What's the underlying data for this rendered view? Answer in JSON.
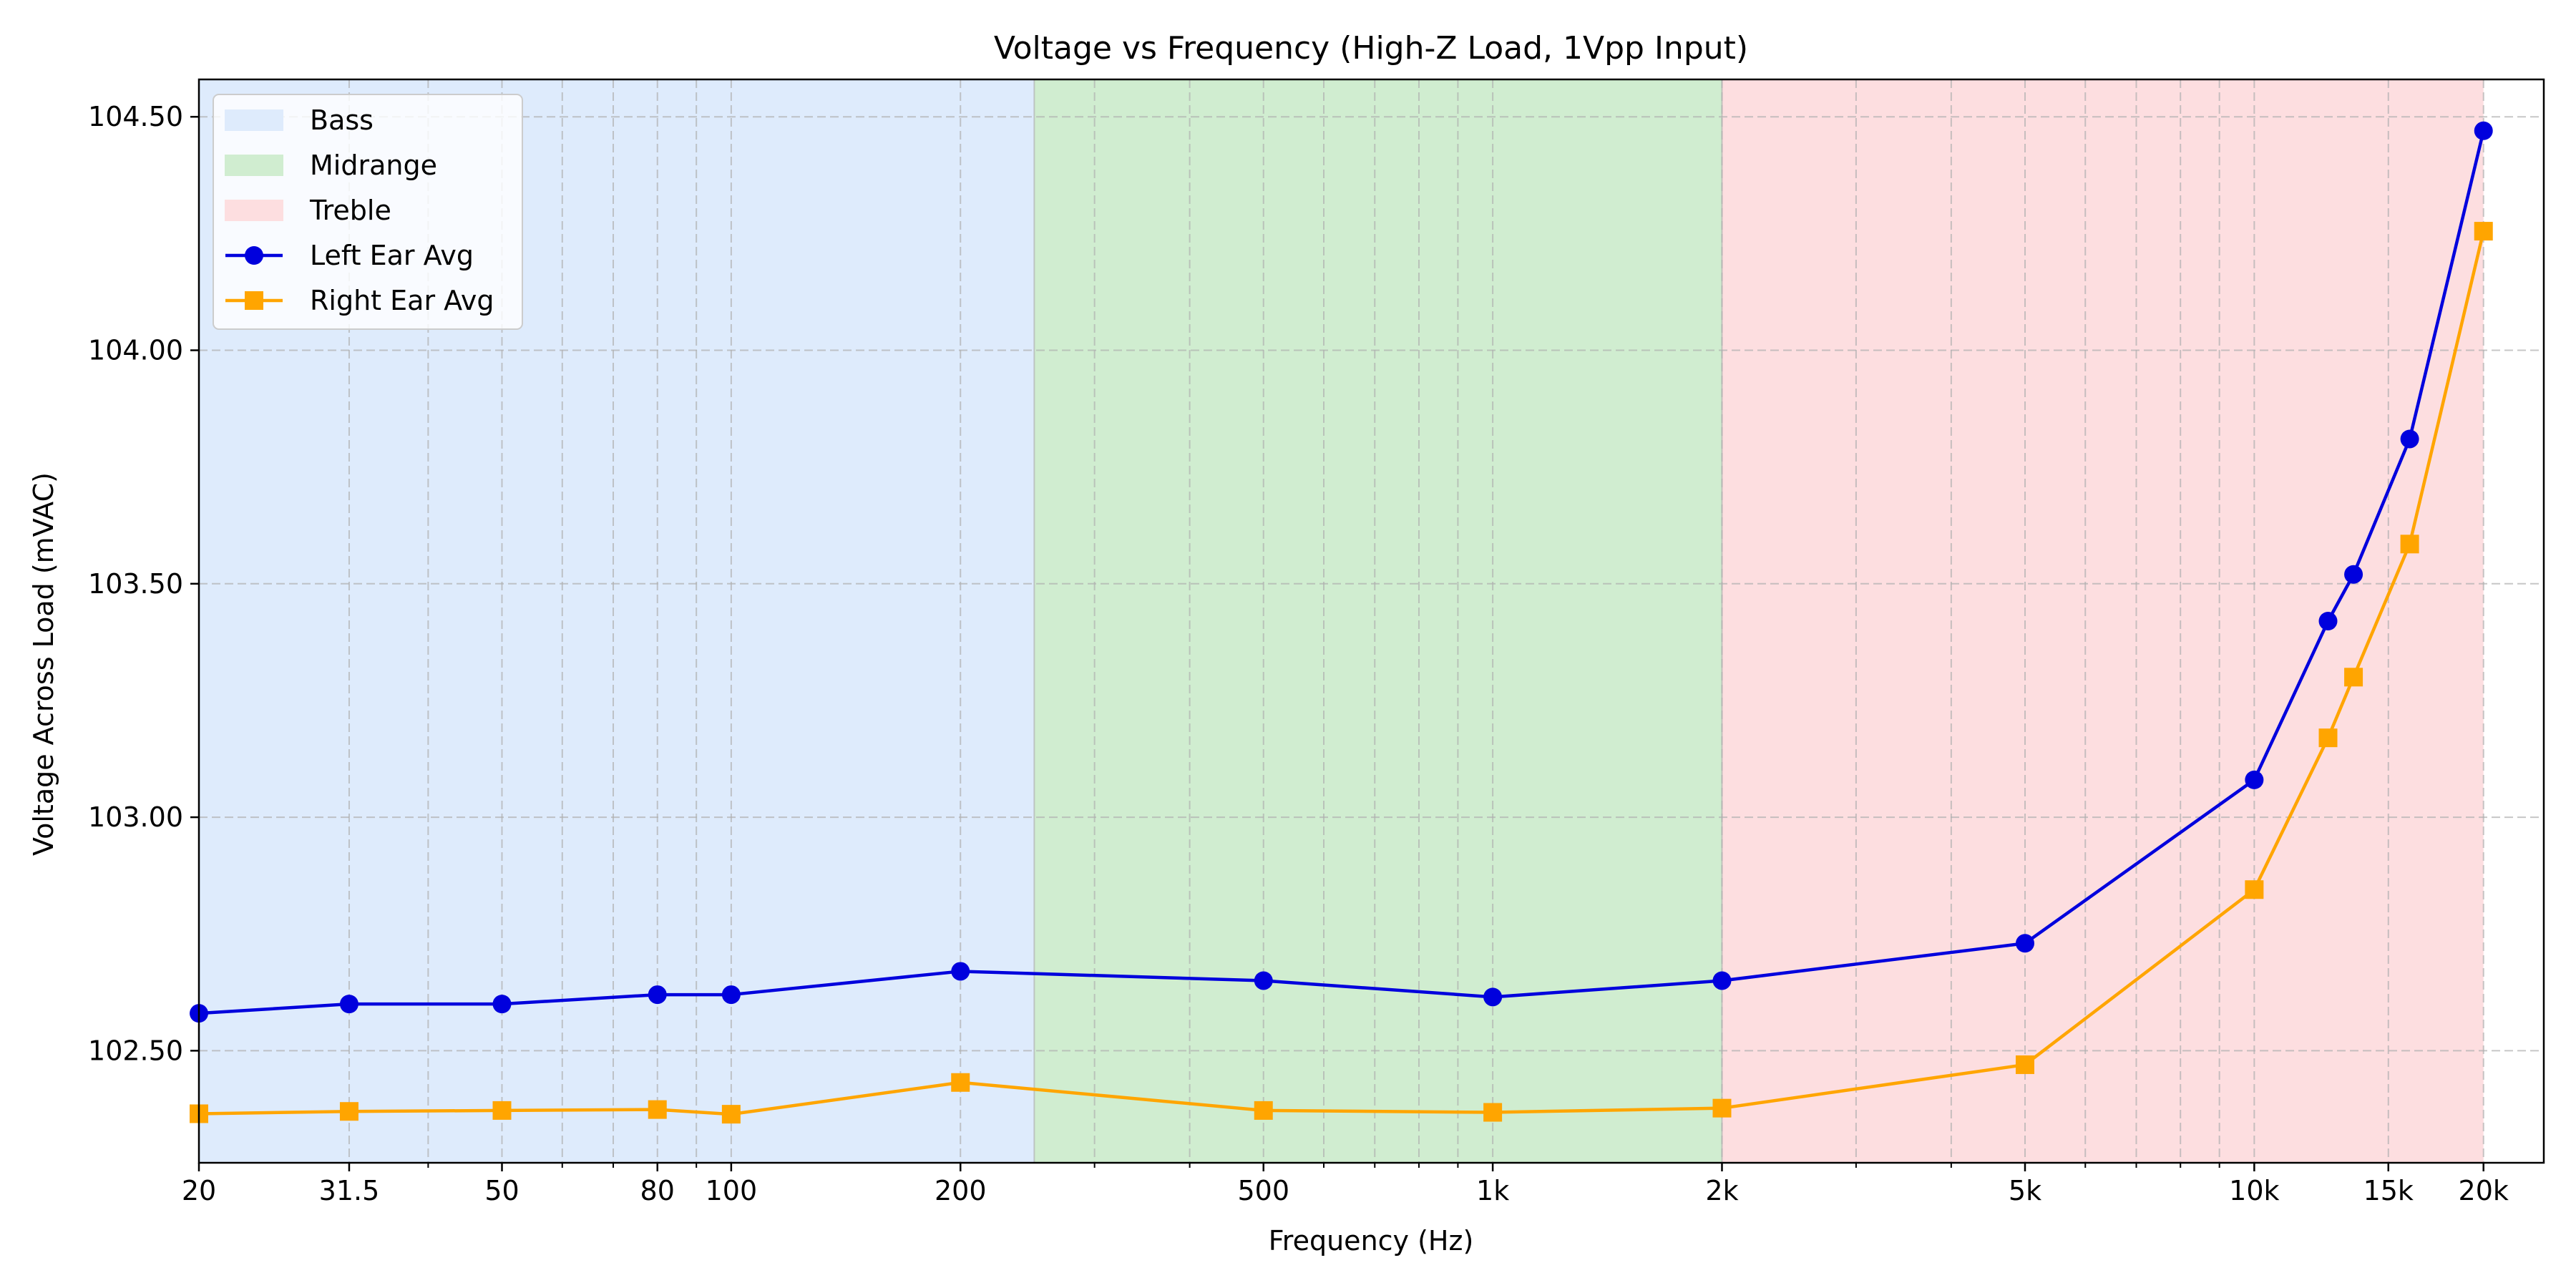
{
  "chart_data": {
    "type": "line",
    "title": "Voltage vs Frequency (High-Z Load, 1Vpp Input)",
    "xlabel": "Frequency (Hz)",
    "ylabel": "Voltage Across Load (mVAC)",
    "x_scale": "log",
    "xlim": [
      20,
      24000
    ],
    "ylim": [
      102.26,
      104.58
    ],
    "grid": true,
    "legend_position": "top-left",
    "x_ticks": [
      {
        "value": 20,
        "label": "20"
      },
      {
        "value": 31.5,
        "label": "31.5"
      },
      {
        "value": 50,
        "label": "50"
      },
      {
        "value": 80,
        "label": "80"
      },
      {
        "value": 100,
        "label": "100"
      },
      {
        "value": 200,
        "label": "200"
      },
      {
        "value": 500,
        "label": "500"
      },
      {
        "value": 1000,
        "label": "1k"
      },
      {
        "value": 2000,
        "label": "2k"
      },
      {
        "value": 5000,
        "label": "5k"
      },
      {
        "value": 10000,
        "label": "10k"
      },
      {
        "value": 15000,
        "label": "15k"
      },
      {
        "value": 20000,
        "label": "20k"
      }
    ],
    "x_minor_grid": [
      40,
      60,
      70,
      90,
      300,
      400,
      600,
      700,
      800,
      900,
      3000,
      4000,
      6000,
      7000,
      8000,
      9000
    ],
    "y_ticks": [
      {
        "value": 102.5,
        "label": "102.50"
      },
      {
        "value": 103.0,
        "label": "103.00"
      },
      {
        "value": 103.5,
        "label": "103.50"
      },
      {
        "value": 104.0,
        "label": "104.00"
      },
      {
        "value": 104.5,
        "label": "104.50"
      }
    ],
    "bands": [
      {
        "name": "Bass",
        "from": 20,
        "to": 250,
        "color": "#deebfc"
      },
      {
        "name": "Midrange",
        "from": 250,
        "to": 2000,
        "color": "#d0edd0"
      },
      {
        "name": "Treble",
        "from": 2000,
        "to": 20000,
        "color": "#fddee0"
      }
    ],
    "x": [
      20,
      31.5,
      50,
      80,
      100,
      200,
      500,
      1000,
      2000,
      5000,
      10000,
      12500,
      13500,
      16000,
      20000
    ],
    "series": [
      {
        "name": "Left Ear Avg",
        "color": "#0000dd",
        "marker": "circle",
        "values": [
          102.58,
          102.6,
          102.6,
          102.62,
          102.62,
          102.67,
          102.65,
          102.615,
          102.65,
          102.73,
          103.08,
          103.42,
          103.52,
          103.81,
          104.47
        ]
      },
      {
        "name": "Right Ear Avg",
        "color": "#ffa500",
        "marker": "square",
        "values": [
          102.365,
          102.37,
          102.372,
          102.374,
          102.364,
          102.432,
          102.372,
          102.368,
          102.377,
          102.47,
          102.845,
          103.17,
          103.3,
          103.585,
          104.255
        ]
      }
    ]
  }
}
